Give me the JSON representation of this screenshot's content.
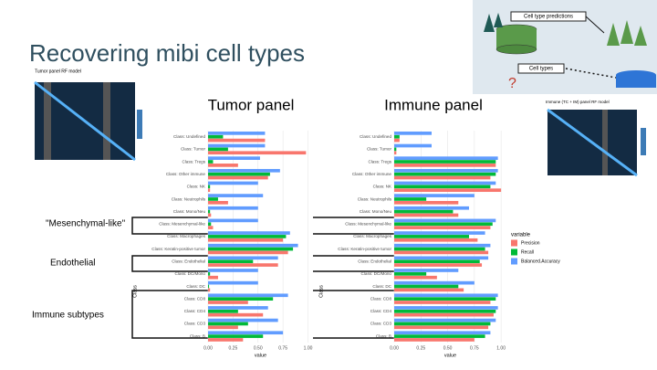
{
  "title": "Recovering mibi cell types",
  "panel_labels": [
    "Tumor panel",
    "Immune panel"
  ],
  "callouts": [
    "\"Mesenchymal-like\"",
    "Endothelial",
    "Immune subtypes"
  ],
  "heatmaps": [
    "Tumor panel RF model",
    "Immune (TC + IM) panel RF model"
  ],
  "diagram": {
    "top": "Cell type predictions",
    "bottom": "Cell types",
    "mark": "?"
  },
  "chart_data": [
    {
      "type": "bar",
      "orientation": "horizontal",
      "x_label": "value",
      "y_label": "Class",
      "legend_title": "variable",
      "categories": [
        "Class: Undefined",
        "Class: Tumor",
        "Class: Tregs",
        "Class: Other immune",
        "Class: NK",
        "Class: Neutrophils",
        "Class: Mono/Neu",
        "Class: Mesenchymal-like",
        "Class: Macrophages",
        "Class: Keratin-positive tumor",
        "Class: Endothelial",
        "Class: DC/Mono",
        "Class: DC",
        "Class: CD8",
        "Class: CD4",
        "Class: CD3",
        "Class: B"
      ],
      "series": [
        {
          "name": "Precision",
          "color": "#f8766d",
          "values": [
            0.57,
            0.98,
            0.3,
            0.6,
            0.02,
            0.2,
            0.03,
            0.05,
            0.75,
            0.8,
            0.7,
            0.1,
            0.02,
            0.4,
            0.55,
            0.3,
            0.35
          ]
        },
        {
          "name": "Recall",
          "color": "#00ba38",
          "values": [
            0.15,
            0.2,
            0.05,
            0.62,
            0.02,
            0.1,
            0.02,
            0.03,
            0.78,
            0.85,
            0.45,
            0.02,
            0.01,
            0.65,
            0.3,
            0.4,
            0.55
          ]
        },
        {
          "name": "Balanced.Accuracy",
          "color": "#619cff",
          "values": [
            0.57,
            0.57,
            0.52,
            0.72,
            0.5,
            0.55,
            0.5,
            0.5,
            0.82,
            0.9,
            0.7,
            0.5,
            0.5,
            0.8,
            0.6,
            0.7,
            0.75
          ]
        }
      ],
      "xlim": [
        0,
        1.05
      ],
      "xticks": [
        {
          "value": 0,
          "label": "0.00"
        },
        {
          "value": 0.25,
          "label": "0.25"
        },
        {
          "value": 0.5,
          "label": "0.50"
        },
        {
          "value": 0.75,
          "label": "0.75"
        },
        {
          "value": 1,
          "label": "1.00"
        }
      ],
      "grid": true
    },
    {
      "type": "bar",
      "orientation": "horizontal",
      "x_label": "value",
      "y_label": "Class",
      "categories": [
        "Class: Undefined",
        "Class: Tumor",
        "Class: Tregs",
        "Class: Other immune",
        "Class: NK",
        "Class: Neutrophils",
        "Class: Mono/Neu",
        "Class: Mesenchymal-like",
        "Class: Macrophages",
        "Class: Keratin-positive tumor",
        "Class: Endothelial",
        "Class: DC/Mono",
        "Class: DC",
        "Class: CD8",
        "Class: CD4",
        "Class: CD3",
        "Class: B"
      ],
      "series": [
        {
          "name": "Precision",
          "color": "#f8766d",
          "values": [
            0.05,
            0.02,
            0.95,
            0.9,
            1.0,
            0.6,
            0.6,
            0.9,
            0.78,
            0.88,
            0.82,
            0.4,
            0.65,
            0.9,
            0.93,
            0.88,
            0.75
          ]
        },
        {
          "name": "Recall",
          "color": "#00ba38",
          "values": [
            0.05,
            0.02,
            0.95,
            0.95,
            0.9,
            0.3,
            0.55,
            0.92,
            0.7,
            0.85,
            0.8,
            0.3,
            0.6,
            0.95,
            0.95,
            0.9,
            0.85
          ]
        },
        {
          "name": "Balanced.Accuracy",
          "color": "#619cff",
          "values": [
            0.35,
            0.35,
            0.97,
            0.97,
            0.95,
            0.75,
            0.7,
            0.95,
            0.85,
            0.9,
            0.88,
            0.6,
            0.75,
            0.97,
            0.97,
            0.95,
            0.9
          ]
        }
      ],
      "xlim": [
        0,
        1.05
      ],
      "xticks": [
        {
          "value": 0,
          "label": "0.00"
        },
        {
          "value": 0.25,
          "label": "0.25"
        },
        {
          "value": 0.5,
          "label": "0.50"
        },
        {
          "value": 0.75,
          "label": "0.75"
        },
        {
          "value": 1,
          "label": "1.00"
        }
      ],
      "grid": true
    }
  ]
}
